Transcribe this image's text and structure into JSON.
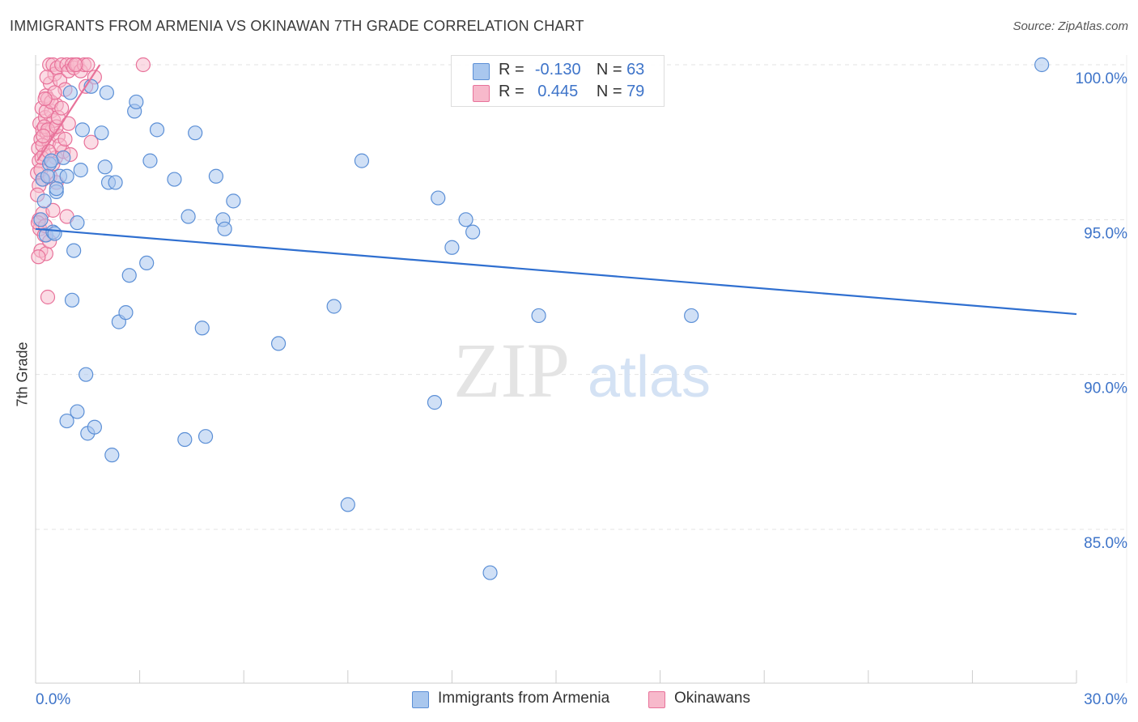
{
  "title": "IMMIGRANTS FROM ARMENIA VS OKINAWAN 7TH GRADE CORRELATION CHART",
  "source": "Source: ZipAtlas.com",
  "watermark": {
    "zip": "ZIP",
    "atlas": "atlas"
  },
  "legend_top": [
    {
      "r_label": "R =",
      "r_value": "-0.130",
      "n_label": "N =",
      "n_value": "63",
      "color": "#a9c7ee",
      "border": "#5b8fd6"
    },
    {
      "r_label": "R =",
      "r_value": "0.445",
      "n_label": "N =",
      "n_value": "79",
      "color": "#f7b9cb",
      "border": "#e8729a"
    }
  ],
  "legend_bottom": [
    {
      "label": "Immigrants from Armenia",
      "color": "#a9c7ee",
      "border": "#5b8fd6"
    },
    {
      "label": "Okinawans",
      "color": "#f7b9cb",
      "border": "#e8729a"
    }
  ],
  "chart_data": {
    "type": "scatter",
    "title": "IMMIGRANTS FROM ARMENIA VS OKINAWAN 7TH GRADE CORRELATION CHART",
    "xlabel": "",
    "ylabel": "7th Grade",
    "xlim": [
      0,
      30
    ],
    "ylim": [
      80,
      100.8
    ],
    "x_tick_labels": [
      "0.0%",
      "30.0%"
    ],
    "y_ticks": [
      85,
      90,
      95,
      100
    ],
    "y_tick_labels": [
      "85.0%",
      "90.0%",
      "95.0%",
      "100.0%"
    ],
    "grid": true,
    "series": [
      {
        "name": "Immigrants from Armenia",
        "color": "#5b8fd6",
        "fill": "rgba(169,199,238,0.55)",
        "trend": {
          "x": [
            0,
            30
          ],
          "y": [
            94.7,
            91.95
          ],
          "color": "#2f6fd0"
        },
        "points": [
          [
            0.2,
            96.3
          ],
          [
            0.25,
            95.6
          ],
          [
            0.3,
            94.5
          ],
          [
            0.4,
            96.8
          ],
          [
            0.5,
            94.6
          ],
          [
            0.6,
            95.9
          ],
          [
            0.7,
            96.4
          ],
          [
            0.8,
            97.0
          ],
          [
            0.9,
            96.4
          ],
          [
            1.0,
            99.1
          ],
          [
            1.05,
            92.4
          ],
          [
            1.1,
            94.0
          ],
          [
            1.2,
            94.9
          ],
          [
            1.3,
            96.6
          ],
          [
            1.35,
            97.9
          ],
          [
            1.45,
            90.0
          ],
          [
            1.5,
            88.1
          ],
          [
            1.6,
            99.3
          ],
          [
            1.7,
            88.3
          ],
          [
            1.9,
            97.8
          ],
          [
            2.0,
            96.7
          ],
          [
            2.05,
            99.1
          ],
          [
            2.1,
            96.2
          ],
          [
            2.2,
            87.4
          ],
          [
            2.3,
            96.2
          ],
          [
            2.4,
            91.7
          ],
          [
            2.6,
            92.0
          ],
          [
            2.7,
            93.2
          ],
          [
            2.85,
            98.5
          ],
          [
            2.9,
            98.8
          ],
          [
            3.2,
            93.6
          ],
          [
            3.3,
            96.9
          ],
          [
            3.5,
            97.9
          ],
          [
            4.0,
            96.3
          ],
          [
            4.3,
            87.9
          ],
          [
            4.4,
            95.1
          ],
          [
            4.6,
            97.8
          ],
          [
            4.8,
            91.5
          ],
          [
            4.9,
            88.0
          ],
          [
            5.2,
            96.4
          ],
          [
            5.4,
            95.0
          ],
          [
            5.45,
            94.7
          ],
          [
            5.7,
            95.6
          ],
          [
            7.0,
            91.0
          ],
          [
            8.6,
            92.2
          ],
          [
            9.0,
            85.8
          ],
          [
            9.4,
            96.9
          ],
          [
            11.5,
            89.1
          ],
          [
            11.6,
            95.7
          ],
          [
            12.0,
            94.1
          ],
          [
            12.4,
            95.0
          ],
          [
            12.6,
            94.6
          ],
          [
            13.1,
            83.6
          ],
          [
            14.5,
            91.9
          ],
          [
            18.9,
            91.9
          ],
          [
            29.0,
            100.0
          ],
          [
            1.2,
            88.8
          ],
          [
            0.9,
            88.5
          ],
          [
            0.35,
            96.4
          ],
          [
            0.45,
            96.9
          ],
          [
            0.6,
            96.0
          ],
          [
            0.15,
            95.0
          ],
          [
            0.55,
            94.55
          ]
        ]
      },
      {
        "name": "Okinawans",
        "color": "#e8729a",
        "fill": "rgba(247,185,203,0.5)",
        "trend": {
          "x": [
            0.05,
            1.85
          ],
          "y": [
            96.9,
            100.0
          ],
          "color": "#e8729a"
        },
        "points": [
          [
            0.05,
            96.5
          ],
          [
            0.08,
            97.3
          ],
          [
            0.1,
            96.9
          ],
          [
            0.12,
            98.1
          ],
          [
            0.15,
            97.6
          ],
          [
            0.18,
            98.6
          ],
          [
            0.2,
            97.9
          ],
          [
            0.22,
            96.3
          ],
          [
            0.25,
            97.1
          ],
          [
            0.28,
            98.3
          ],
          [
            0.3,
            99.0
          ],
          [
            0.32,
            97.8
          ],
          [
            0.35,
            98.9
          ],
          [
            0.38,
            97.5
          ],
          [
            0.4,
            100.0
          ],
          [
            0.42,
            99.4
          ],
          [
            0.45,
            98.5
          ],
          [
            0.48,
            97.9
          ],
          [
            0.5,
            100.0
          ],
          [
            0.52,
            98.2
          ],
          [
            0.55,
            99.7
          ],
          [
            0.58,
            97.0
          ],
          [
            0.6,
            98.7
          ],
          [
            0.62,
            99.9
          ],
          [
            0.65,
            97.7
          ],
          [
            0.7,
            99.5
          ],
          [
            0.75,
            100.0
          ],
          [
            0.8,
            97.2
          ],
          [
            0.85,
            99.2
          ],
          [
            0.9,
            100.0
          ],
          [
            0.95,
            99.8
          ],
          [
            1.0,
            97.1
          ],
          [
            1.05,
            100.0
          ],
          [
            1.1,
            99.9
          ],
          [
            1.2,
            100.0
          ],
          [
            1.3,
            99.8
          ],
          [
            1.4,
            100.0
          ],
          [
            1.45,
            99.3
          ],
          [
            1.5,
            100.0
          ],
          [
            1.6,
            97.5
          ],
          [
            1.7,
            99.6
          ],
          [
            3.1,
            100.0
          ],
          [
            0.1,
            95.0
          ],
          [
            0.12,
            94.7
          ],
          [
            0.15,
            94.0
          ],
          [
            0.2,
            95.2
          ],
          [
            0.25,
            94.5
          ],
          [
            0.3,
            93.9
          ],
          [
            0.35,
            92.5
          ],
          [
            0.4,
            94.3
          ],
          [
            0.1,
            96.1
          ],
          [
            0.15,
            96.6
          ],
          [
            0.2,
            97.4
          ],
          [
            0.25,
            98.0
          ],
          [
            0.3,
            98.5
          ],
          [
            0.35,
            97.9
          ],
          [
            0.45,
            98.8
          ],
          [
            0.5,
            96.8
          ],
          [
            0.55,
            99.1
          ],
          [
            0.6,
            98.0
          ],
          [
            0.65,
            98.3
          ],
          [
            0.7,
            97.4
          ],
          [
            0.75,
            98.6
          ],
          [
            0.85,
            97.6
          ],
          [
            0.95,
            98.1
          ],
          [
            1.15,
            100.0
          ],
          [
            0.05,
            95.8
          ],
          [
            0.07,
            94.9
          ],
          [
            0.08,
            93.8
          ],
          [
            0.18,
            97.0
          ],
          [
            0.22,
            97.7
          ],
          [
            0.27,
            98.9
          ],
          [
            0.32,
            99.6
          ],
          [
            0.38,
            97.2
          ],
          [
            0.42,
            96.4
          ],
          [
            0.5,
            95.3
          ],
          [
            0.9,
            95.1
          ],
          [
            0.28,
            94.8
          ],
          [
            0.6,
            96.2
          ]
        ]
      }
    ]
  }
}
